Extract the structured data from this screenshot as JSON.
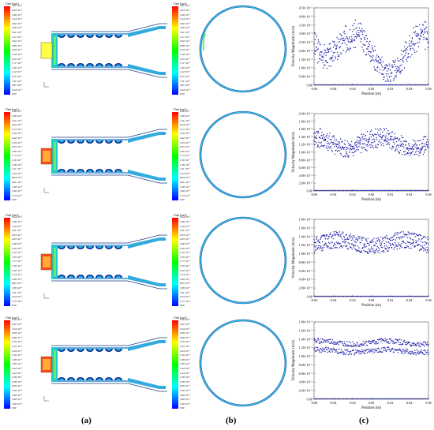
{
  "captions": [
    "(a)",
    "(b)",
    "(c)"
  ],
  "colorbar_title": "Unit (m/s)",
  "colormap": [
    "#0000ff",
    "#0080ff",
    "#00ffff",
    "#00ff80",
    "#00ff00",
    "#80ff00",
    "#ffff00",
    "#ff8000",
    "#ff0000"
  ],
  "rows": [
    {
      "a_labels": [
        "4.87×10⁻²",
        "4.63×10⁻²",
        "4.39×10⁻²",
        "4.14×10⁻²",
        "3.90×10⁻²",
        "3.66×10⁻²",
        "3.41×10⁻²",
        "3.17×10⁻²",
        "2.92×10⁻²",
        "2.68×10⁻²",
        "2.44×10⁻²",
        "2.19×10⁻²",
        "1.95×10⁻²",
        "1.71×10⁻²",
        "1.46×10⁻²",
        "1.22×10⁻²",
        "9.75×10⁻³",
        "7.31×10⁻³",
        "4.87×10⁻³",
        "2.44×10⁻³",
        "0.00"
      ],
      "b_labels": [
        "4.87×10⁻²",
        "4.63×10⁻²",
        "4.39×10⁻²",
        "4.14×10⁻²",
        "3.90×10⁻²",
        "3.66×10⁻²",
        "3.41×10⁻²",
        "3.17×10⁻²",
        "2.92×10⁻²",
        "2.68×10⁻²",
        "2.44×10⁻²",
        "2.19×10⁻²",
        "1.95×10⁻²",
        "1.71×10⁻²",
        "1.46×10⁻²",
        "1.22×10⁻²",
        "9.75×10⁻³",
        "7.31×10⁻³",
        "4.87×10⁻³",
        "2.44×10⁻³",
        "0.00"
      ],
      "chart": {
        "yticks": [
          "4.50×10⁻²",
          "4.00×10⁻²",
          "3.50×10⁻²",
          "3.00×10⁻²",
          "2.50×10⁻²",
          "2.00×10⁻²",
          "1.50×10⁻²",
          "1.00×10⁻²",
          "5.00×10⁻³",
          "0.00"
        ],
        "ymax": 0.045,
        "mean": 0.02,
        "amp": 0.012,
        "noise": 0.006,
        "seed": 3
      }
    },
    {
      "a_labels": [
        "3.46×10⁻²",
        "3.28×10⁻²",
        "3.11×10⁻²",
        "2.94×10⁻²",
        "2.77×10⁻²",
        "2.59×10⁻²",
        "2.42×10⁻²",
        "2.25×10⁻²",
        "2.07×10⁻²",
        "1.90×10⁻²",
        "1.73×10⁻²",
        "1.56×10⁻²",
        "1.38×10⁻²",
        "1.21×10⁻²",
        "1.04×10⁻²",
        "8.64×10⁻³",
        "6.91×10⁻³",
        "5.18×10⁻³",
        "3.46×10⁻³",
        "1.73×10⁻³",
        "0.00"
      ],
      "b_labels": [
        "3.46×10⁻²",
        "3.28×10⁻²",
        "3.11×10⁻²",
        "2.94×10⁻²",
        "2.77×10⁻²",
        "2.59×10⁻²",
        "2.42×10⁻²",
        "2.25×10⁻²",
        "2.07×10⁻²",
        "1.90×10⁻²",
        "1.73×10⁻²",
        "1.56×10⁻²",
        "1.38×10⁻²",
        "1.21×10⁻²",
        "1.04×10⁻²",
        "8.64×10⁻³",
        "6.91×10⁻³",
        "5.18×10⁻³",
        "3.46×10⁻³",
        "1.73×10⁻³",
        "0.00"
      ],
      "chart": {
        "yticks": [
          "2.00×10⁻²",
          "1.80×10⁻²",
          "1.60×10⁻²",
          "1.40×10⁻²",
          "1.20×10⁻²",
          "1.00×10⁻²",
          "8.00×10⁻³",
          "6.00×10⁻³",
          "4.00×10⁻³",
          "2.00×10⁻³",
          "0.00"
        ],
        "ymax": 0.02,
        "mean": 0.0135,
        "amp": 0.0015,
        "noise": 0.0015,
        "seed": 7
      }
    },
    {
      "a_labels": [
        "3.54×10⁻²",
        "3.36×10⁻²",
        "3.19×10⁻²",
        "3.01×10⁻²",
        "2.83×10⁻²",
        "2.65×10⁻²",
        "2.48×10⁻²",
        "2.30×10⁻²",
        "2.12×10⁻²",
        "1.95×10⁻²",
        "1.77×10⁻²",
        "1.59×10⁻²",
        "1.42×10⁻²",
        "1.24×10⁻²",
        "1.06×10⁻²",
        "8.85×10⁻³",
        "7.08×10⁻³",
        "5.31×10⁻³",
        "3.54×10⁻³",
        "1.77×10⁻³",
        "0.00"
      ],
      "b_labels": [
        "3.54×10⁻²",
        "3.36×10⁻²",
        "3.19×10⁻²",
        "3.01×10⁻²",
        "2.83×10⁻²",
        "2.65×10⁻²",
        "2.48×10⁻²",
        "2.30×10⁻²",
        "2.12×10⁻²",
        "1.95×10⁻²",
        "1.77×10⁻²",
        "1.59×10⁻²",
        "1.42×10⁻²",
        "1.24×10⁻²",
        "1.06×10⁻²",
        "8.85×10⁻³",
        "7.08×10⁻³",
        "5.31×10⁻³",
        "3.54×10⁻³",
        "1.77×10⁻³",
        "0.00"
      ],
      "chart": {
        "yticks": [
          "1.80×10⁻²",
          "1.60×10⁻²",
          "1.40×10⁻²",
          "1.20×10⁻²",
          "1.00×10⁻²",
          "8.00×10⁻³",
          "6.00×10⁻³",
          "4.00×10⁻³",
          "2.00×10⁻³",
          "0.00"
        ],
        "ymax": 0.018,
        "mean": 0.0135,
        "amp": 0.0008,
        "noise": 0.0009,
        "seed": 11
      }
    },
    {
      "a_labels": [
        "3.60×10⁻²",
        "3.42×10⁻²",
        "3.24×10⁻²",
        "3.06×10⁻²",
        "2.88×10⁻²",
        "2.70×10⁻²",
        "2.52×10⁻²",
        "2.34×10⁻²",
        "2.16×10⁻²",
        "1.98×10⁻²",
        "1.80×10⁻²",
        "1.62×10⁻²",
        "1.44×10⁻²",
        "1.26×10⁻²",
        "1.08×10⁻²",
        "9.00×10⁻³",
        "7.20×10⁻³",
        "5.40×10⁻³",
        "3.60×10⁻³",
        "1.80×10⁻³",
        "0.00"
      ],
      "b_labels": [
        "3.60×10⁻²",
        "3.42×10⁻²",
        "3.24×10⁻²",
        "3.06×10⁻²",
        "2.88×10⁻²",
        "2.70×10⁻²",
        "2.52×10⁻²",
        "2.34×10⁻²",
        "2.16×10⁻²",
        "1.98×10⁻²",
        "1.80×10⁻²",
        "1.62×10⁻²",
        "1.44×10⁻²",
        "1.26×10⁻²",
        "1.08×10⁻²",
        "9.00×10⁻³",
        "7.20×10⁻³",
        "5.40×10⁻³",
        "3.60×10⁻³",
        "1.80×10⁻³",
        "0.00"
      ],
      "chart": {
        "yticks": [
          "1.80×10⁻²",
          "1.60×10⁻²",
          "1.40×10⁻²",
          "1.20×10⁻²",
          "1.00×10⁻²",
          "8.00×10⁻³",
          "6.00×10⁻³",
          "4.00×10⁻³",
          "2.00×10⁻³",
          "0.00"
        ],
        "ymax": 0.018,
        "mean": 0.0132,
        "amp": 0.0004,
        "noise": 0.0006,
        "seed": 19
      }
    }
  ],
  "chart_data": [
    {
      "type": "scatter",
      "xlabel": "Position (m)",
      "ylabel": "Velocity Magnitude (m/s)",
      "xticks": [
        "-0.06",
        "-0.04",
        "-0.02",
        "0.00",
        "0.02",
        "0.04",
        "0.06"
      ],
      "xlim": [
        -0.06,
        0.06
      ],
      "ylim": [
        0,
        0.045
      ]
    },
    {
      "type": "scatter",
      "xlabel": "Position (m)",
      "ylabel": "Velocity Magnitude (m/s)",
      "xticks": [
        "-0.06",
        "-0.04",
        "-0.02",
        "0.00",
        "0.02",
        "0.04",
        "0.06"
      ],
      "xlim": [
        -0.06,
        0.06
      ],
      "ylim": [
        0,
        0.02
      ]
    },
    {
      "type": "scatter",
      "xlabel": "Position (m)",
      "ylabel": "Velocity Magnitude (m/s)",
      "xticks": [
        "-0.06",
        "-0.04",
        "-0.02",
        "0.00",
        "0.02",
        "0.04",
        "0.06"
      ],
      "xlim": [
        -0.06,
        0.06
      ],
      "ylim": [
        0,
        0.018
      ]
    },
    {
      "type": "scatter",
      "xlabel": "Position (m)",
      "ylabel": "Velocity Magnitude (m/s)",
      "xticks": [
        "-0.06",
        "-0.04",
        "-0.02",
        "0.00",
        "0.02",
        "0.04",
        "0.06"
      ],
      "xlim": [
        -0.06,
        0.06
      ],
      "ylim": [
        0,
        0.018
      ]
    }
  ]
}
